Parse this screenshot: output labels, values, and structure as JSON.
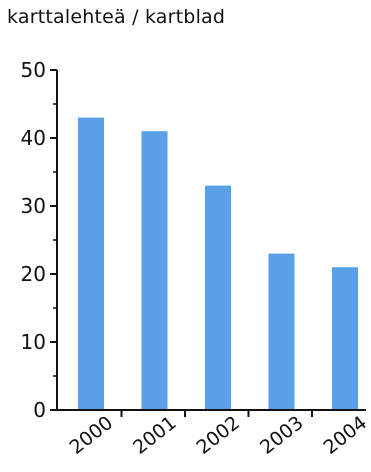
{
  "chart_data": {
    "type": "bar",
    "unit_label": "karttalehteä / kartblad",
    "categories": [
      "2000",
      "2001",
      "2002",
      "2003",
      "2004"
    ],
    "values": [
      43,
      41,
      33,
      23,
      21
    ],
    "ylim": [
      0,
      50
    ],
    "y_ticks": [
      "0",
      "10",
      "20",
      "30",
      "40",
      "50"
    ],
    "bar_color": "#5aa0e6",
    "grid": false,
    "legend": "none"
  }
}
